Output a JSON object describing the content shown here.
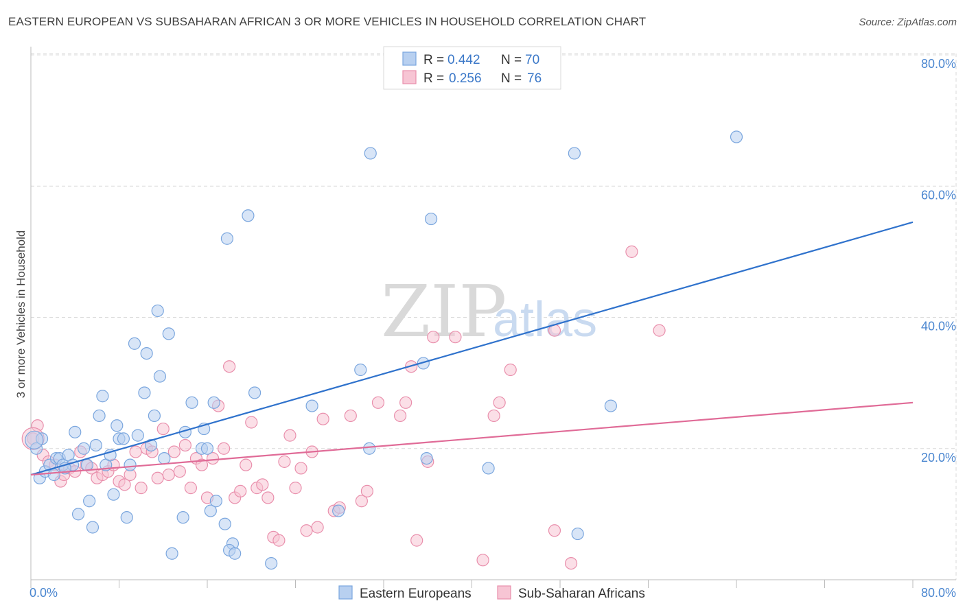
{
  "header": {
    "title": "EASTERN EUROPEAN VS SUBSAHARAN AFRICAN 3 OR MORE VEHICLES IN HOUSEHOLD CORRELATION CHART",
    "source": "Source: ZipAtlas.com"
  },
  "watermark": {
    "zip": "ZIP",
    "atlas": "atlas"
  },
  "colors": {
    "blue_fill": "#b8d0f0",
    "blue_stroke": "#7aa6de",
    "blue_line": "#2f72cc",
    "pink_fill": "#f7c5d4",
    "pink_stroke": "#e98fac",
    "pink_line": "#e06b97",
    "grid": "#d9d9d9",
    "tick_label": "#4a86d0"
  },
  "legend": {
    "rows": [
      {
        "r_label": "R = ",
        "r_value": "0.442",
        "n_label": "N = ",
        "n_value": "70",
        "series": "blue"
      },
      {
        "r_label": "R = ",
        "r_value": "0.256",
        "n_label": "N = ",
        "n_value": "76",
        "series": "pink"
      }
    ]
  },
  "chart_data": {
    "type": "scatter",
    "title": "EASTERN EUROPEAN VS SUBSAHARAN AFRICAN 3 OR MORE VEHICLES IN HOUSEHOLD CORRELATION CHART",
    "xlabel": "",
    "ylabel": "3 or more Vehicles in Household",
    "xlim": [
      0,
      80
    ],
    "ylim": [
      0,
      80
    ],
    "x_tick_labels": [
      "0.0%",
      "80.0%"
    ],
    "y_ticks": [
      20,
      40,
      60,
      80
    ],
    "y_tick_labels": [
      "20.0%",
      "40.0%",
      "60.0%",
      "80.0%"
    ],
    "grid": true,
    "legend_position": "top-center",
    "series": [
      {
        "name": "Eastern Europeans",
        "color": "blue",
        "trend": {
          "x": [
            0,
            80
          ],
          "y": [
            16.0,
            54.5
          ]
        },
        "points": [
          [
            0.5,
            20
          ],
          [
            0.8,
            15.5
          ],
          [
            1.3,
            16.5
          ],
          [
            1.7,
            17.5
          ],
          [
            2.3,
            18.5
          ],
          [
            2.6,
            18.5
          ],
          [
            2.9,
            17.5
          ],
          [
            3.4,
            19
          ],
          [
            3.8,
            17.5
          ],
          [
            4.0,
            22.5
          ],
          [
            4.3,
            10
          ],
          [
            4.8,
            20
          ],
          [
            5.1,
            17.5
          ],
          [
            5.3,
            12
          ],
          [
            5.6,
            8
          ],
          [
            5.9,
            20.5
          ],
          [
            6.2,
            25
          ],
          [
            6.5,
            28
          ],
          [
            6.8,
            17.5
          ],
          [
            7.2,
            19
          ],
          [
            7.5,
            13
          ],
          [
            7.8,
            23.5
          ],
          [
            8.0,
            21.5
          ],
          [
            8.4,
            21.5
          ],
          [
            8.7,
            9.5
          ],
          [
            9.0,
            17.5
          ],
          [
            9.4,
            36
          ],
          [
            9.7,
            22
          ],
          [
            10.3,
            28.5
          ],
          [
            10.5,
            34.5
          ],
          [
            10.9,
            20.5
          ],
          [
            11.2,
            25
          ],
          [
            11.5,
            41
          ],
          [
            11.7,
            31
          ],
          [
            12.1,
            18.5
          ],
          [
            12.5,
            37.5
          ],
          [
            12.8,
            4
          ],
          [
            13.8,
            9.5
          ],
          [
            14.0,
            22.5
          ],
          [
            14.6,
            27
          ],
          [
            15.5,
            20
          ],
          [
            15.7,
            23
          ],
          [
            16.0,
            20
          ],
          [
            16.6,
            27
          ],
          [
            16.3,
            10.5
          ],
          [
            16.8,
            12
          ],
          [
            17.8,
            52
          ],
          [
            17.6,
            8.5
          ],
          [
            18.3,
            5.5
          ],
          [
            18.0,
            4.5
          ],
          [
            18.5,
            4
          ],
          [
            19.7,
            55.5
          ],
          [
            20.3,
            28.5
          ],
          [
            21.8,
            2.5
          ],
          [
            25.5,
            26.5
          ],
          [
            27.9,
            10.5
          ],
          [
            29.9,
            32
          ],
          [
            30.7,
            20
          ],
          [
            30.8,
            65
          ],
          [
            35.6,
            33
          ],
          [
            35.9,
            18.5
          ],
          [
            36.3,
            55
          ],
          [
            41.5,
            17
          ],
          [
            49.3,
            65
          ],
          [
            49.6,
            7
          ],
          [
            52.6,
            26.5
          ],
          [
            64,
            67.5
          ],
          [
            2.1,
            16
          ],
          [
            3.1,
            17
          ],
          [
            1.0,
            21.5
          ]
        ]
      },
      {
        "name": "Sub-Saharan Africans",
        "color": "pink",
        "trend": {
          "x": [
            0,
            80
          ],
          "y": [
            16.0,
            27.0
          ]
        },
        "points": [
          [
            0.2,
            21.5
          ],
          [
            0.6,
            23.5
          ],
          [
            1.1,
            19
          ],
          [
            1.6,
            18
          ],
          [
            2.2,
            17.5
          ],
          [
            2.7,
            15
          ],
          [
            3.0,
            16
          ],
          [
            3.5,
            17
          ],
          [
            4.0,
            16.5
          ],
          [
            4.5,
            19.5
          ],
          [
            5.0,
            17.5
          ],
          [
            5.5,
            17
          ],
          [
            6.0,
            15.5
          ],
          [
            6.5,
            16
          ],
          [
            7.0,
            16.5
          ],
          [
            7.5,
            17.5
          ],
          [
            8.0,
            15
          ],
          [
            8.5,
            14.5
          ],
          [
            9.0,
            16
          ],
          [
            9.5,
            19.5
          ],
          [
            10.0,
            14
          ],
          [
            10.5,
            20
          ],
          [
            11.0,
            19.5
          ],
          [
            11.5,
            15.5
          ],
          [
            12.0,
            23
          ],
          [
            12.5,
            16
          ],
          [
            13.0,
            19.5
          ],
          [
            13.5,
            16.5
          ],
          [
            14.0,
            20.5
          ],
          [
            14.5,
            14
          ],
          [
            15.0,
            18.5
          ],
          [
            15.5,
            17.5
          ],
          [
            16.0,
            12.5
          ],
          [
            16.5,
            18.5
          ],
          [
            17.0,
            26.5
          ],
          [
            17.5,
            20
          ],
          [
            18.0,
            32.5
          ],
          [
            18.5,
            12.5
          ],
          [
            19.0,
            13.5
          ],
          [
            19.5,
            17.5
          ],
          [
            20.0,
            24
          ],
          [
            20.5,
            14
          ],
          [
            21.0,
            14.5
          ],
          [
            21.5,
            12.5
          ],
          [
            22.0,
            6.5
          ],
          [
            22.5,
            6
          ],
          [
            23.0,
            18
          ],
          [
            23.5,
            22
          ],
          [
            24.0,
            14
          ],
          [
            24.5,
            17
          ],
          [
            25.0,
            7.5
          ],
          [
            25.5,
            19.5
          ],
          [
            26.0,
            8
          ],
          [
            26.5,
            24.5
          ],
          [
            27.5,
            10.5
          ],
          [
            28.0,
            11
          ],
          [
            29.0,
            25
          ],
          [
            30.0,
            12
          ],
          [
            30.5,
            13.5
          ],
          [
            31.5,
            27
          ],
          [
            33.5,
            25
          ],
          [
            34.0,
            27
          ],
          [
            34.5,
            32.5
          ],
          [
            35.0,
            6
          ],
          [
            36.0,
            18
          ],
          [
            36.5,
            37
          ],
          [
            38.5,
            37
          ],
          [
            41.0,
            3
          ],
          [
            42.0,
            25
          ],
          [
            42.5,
            27
          ],
          [
            43.5,
            32
          ],
          [
            47.5,
            38
          ],
          [
            47.5,
            7.5
          ],
          [
            49.0,
            2.5
          ],
          [
            54.5,
            50
          ],
          [
            57.0,
            38
          ]
        ]
      }
    ]
  },
  "bottom_legend": {
    "items": [
      "Eastern Europeans",
      "Sub-Saharan Africans"
    ]
  }
}
